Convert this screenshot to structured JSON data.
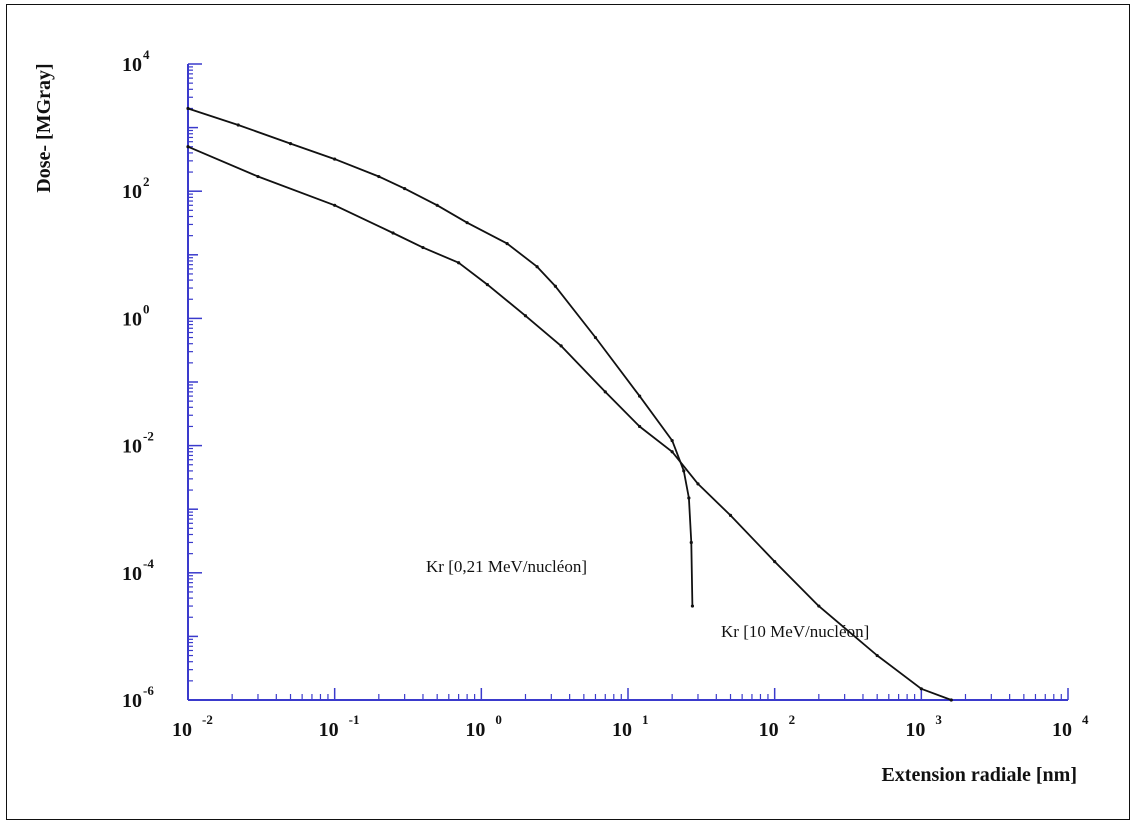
{
  "chart_data": {
    "type": "line",
    "xlabel": "Extension radiale [nm]",
    "ylabel": "Dose- [MGray]",
    "x_scale": "log",
    "y_scale": "log",
    "xlim": [
      0.01,
      10000
    ],
    "ylim": [
      1e-06,
      10000
    ],
    "x_ticks": [
      {
        "base": "10",
        "exp": "-2",
        "value": 0.01
      },
      {
        "base": "10",
        "exp": "-1",
        "value": 0.1
      },
      {
        "base": "10",
        "exp": "0",
        "value": 1
      },
      {
        "base": "10",
        "exp": "1",
        "value": 10
      },
      {
        "base": "10",
        "exp": "2",
        "value": 100
      },
      {
        "base": "10",
        "exp": "3",
        "value": 1000
      },
      {
        "base": "10",
        "exp": "4",
        "value": 10000
      }
    ],
    "y_ticks": [
      {
        "base": "10",
        "exp": "4",
        "value": 10000
      },
      {
        "base": "10",
        "exp": "2",
        "value": 100
      },
      {
        "base": "10",
        "exp": "0",
        "value": 1
      },
      {
        "base": "10",
        "exp": "-2",
        "value": 0.01
      },
      {
        "base": "10",
        "exp": "-4",
        "value": 0.0001
      },
      {
        "base": "10",
        "exp": "-6",
        "value": 1e-06
      }
    ],
    "grid": false,
    "axis_color": "#3a3acc",
    "line_color": "#111111",
    "series": [
      {
        "name": "Kr [0,21 MeV/nucléon]",
        "x": [
          0.01,
          0.022,
          0.05,
          0.1,
          0.2,
          0.3,
          0.5,
          0.8,
          1.5,
          2.4,
          3.2,
          6,
          12,
          20,
          24,
          26,
          27,
          27.5
        ],
        "y": [
          2000,
          1100,
          560,
          320,
          170,
          110,
          60,
          32,
          15,
          6.5,
          3.2,
          0.5,
          0.06,
          0.012,
          0.004,
          0.0015,
          0.0003,
          3e-05
        ]
      },
      {
        "name": "Kr [10 MeV/nucléon]",
        "x": [
          0.01,
          0.03,
          0.1,
          0.25,
          0.4,
          0.7,
          1.1,
          2,
          3.5,
          7,
          12,
          20,
          30,
          50,
          100,
          200,
          500,
          1000,
          1600
        ],
        "y": [
          500,
          170,
          60,
          22,
          13,
          7.5,
          3.4,
          1.1,
          0.37,
          0.07,
          0.02,
          0.008,
          0.0025,
          0.0008,
          0.00015,
          3e-05,
          5e-06,
          1.5e-06,
          1e-06
        ]
      }
    ],
    "annotations": [
      {
        "text": "Kr [0,21 MeV/nucléon]"
      },
      {
        "text": "Kr [10 MeV/nucléon]"
      }
    ]
  }
}
